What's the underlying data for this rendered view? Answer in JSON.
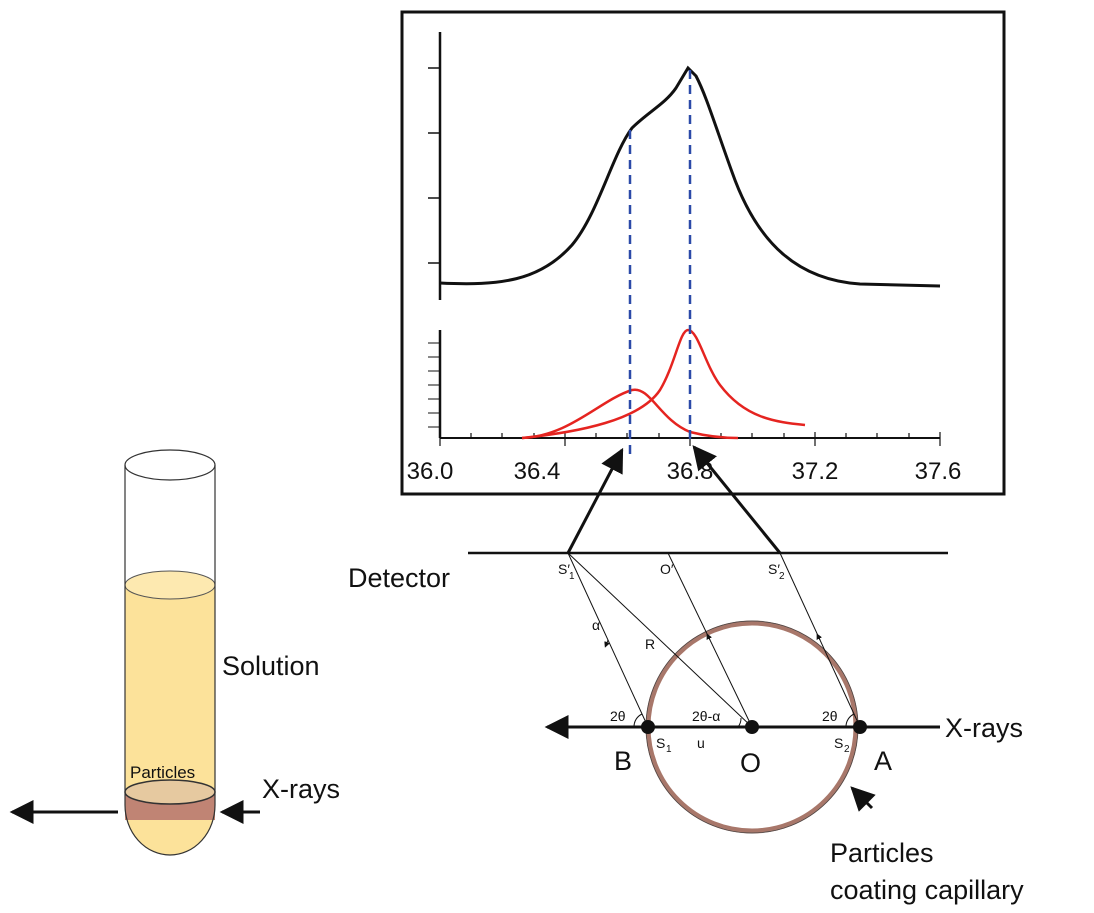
{
  "plot": {
    "x_tick_labels": [
      "36.0",
      "36.4",
      "36.8",
      "37.2",
      "37.6"
    ]
  },
  "tube": {
    "solution_label": "Solution",
    "particles_label": "Particles",
    "xray_label": "X-rays"
  },
  "geometry": {
    "detector_label": "Detector",
    "s1_prime": "S′",
    "s1_prime_sub": "1",
    "o_prime": "O′",
    "s2_prime": "S′",
    "s2_prime_sub": "2",
    "alpha": "α",
    "radius": "R",
    "left_angle": "2θ",
    "center_angle": "2θ-α",
    "right_angle": "2θ",
    "s1": "S",
    "s1_sub": "1",
    "u": "u",
    "s2": "S",
    "s2_sub": "2",
    "point_b": "B",
    "point_o": "O",
    "point_a": "A",
    "xray_label": "X-rays",
    "coating_line1": "Particles",
    "coating_line2": "coating capillary"
  }
}
